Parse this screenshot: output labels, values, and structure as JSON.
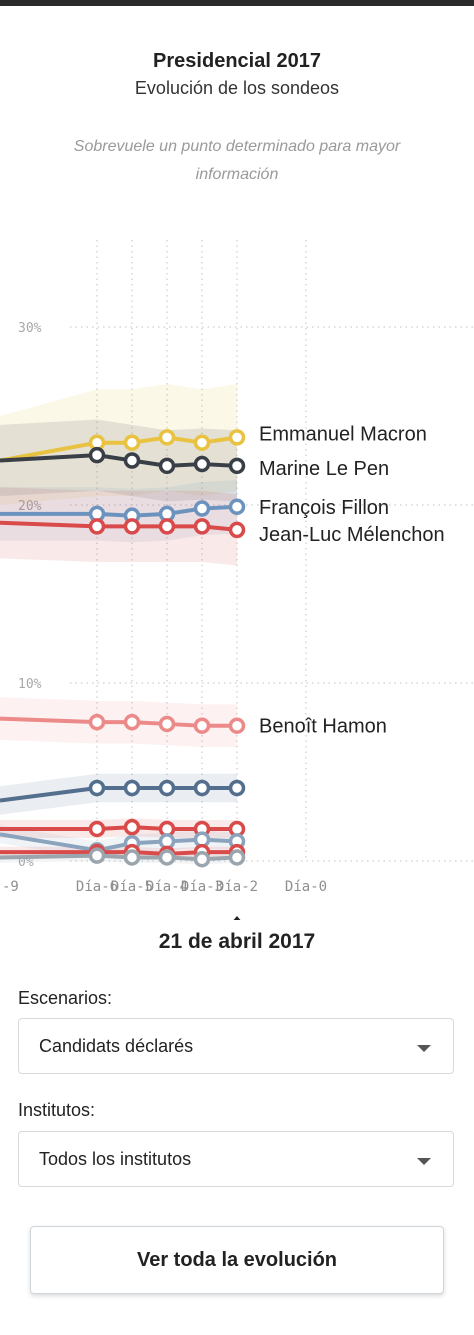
{
  "header": {
    "title": "Presidencial 2017",
    "subtitle": "Evolución de los sondeos",
    "hint": "Sobrevuele un punto determinado para mayor información"
  },
  "selected_date": "21 de abril 2017",
  "filters": {
    "escenarios_label": "Escenarios:",
    "escenarios_value": "Candidats déclarés",
    "institutos_label": "Institutos:",
    "institutos_value": "Todos los institutos"
  },
  "button_label": "Ver toda la evolución",
  "chart_data": {
    "type": "line",
    "title": "Presidencial 2017",
    "subtitle": "Evolución de los sondeos",
    "xlabel": "",
    "ylabel": "",
    "ylim": [
      0,
      30
    ],
    "xlim": [
      -9,
      0
    ],
    "y_ticks": [
      0,
      10,
      20,
      30
    ],
    "y_tick_labels": [
      "0%",
      "10%",
      "20%",
      "30%"
    ],
    "x_ticks": [
      -9,
      -6,
      -5,
      -4,
      -3,
      -2,
      0
    ],
    "x_tick_labels": [
      "-9",
      "Día-6",
      "Día-5",
      "Día-4",
      "Día-3",
      "Día-2",
      "Día-0"
    ],
    "grid": true,
    "legend": "inline-right",
    "series": [
      {
        "name": "Emmanuel Macron",
        "color": "#e8c240",
        "x": [
          -9,
          -6,
          -5,
          -4,
          -3,
          -2
        ],
        "values": [
          22.5,
          23.5,
          23.5,
          23.8,
          23.5,
          23.8
        ],
        "band": [
          2.5,
          3.0,
          3.0,
          3.0,
          3.0,
          3.0
        ]
      },
      {
        "name": "Marine Le Pen",
        "color": "#3a3f47",
        "x": [
          -9,
          -6,
          -5,
          -4,
          -3,
          -2
        ],
        "values": [
          22.5,
          22.8,
          22.5,
          22.2,
          22.3,
          22.2
        ],
        "band": [
          2.0,
          2.0,
          2.0,
          2.0,
          2.0,
          2.0
        ]
      },
      {
        "name": "François Fillon",
        "color": "#6c93bd",
        "x": [
          -9,
          -6,
          -5,
          -4,
          -3,
          -2
        ],
        "values": [
          19.5,
          19.5,
          19.4,
          19.5,
          19.8,
          19.9
        ],
        "band": [
          1.5,
          1.5,
          1.5,
          1.5,
          1.5,
          1.5
        ]
      },
      {
        "name": "Jean-Luc Mélenchon",
        "color": "#d94a4a",
        "x": [
          -9,
          -6,
          -5,
          -4,
          -3,
          -2
        ],
        "values": [
          19.0,
          18.8,
          18.8,
          18.8,
          18.8,
          18.6
        ],
        "band": [
          2.0,
          2.0,
          2.0,
          2.0,
          2.0,
          2.0
        ]
      },
      {
        "name": "Benoît Hamon",
        "color": "#ec8a8a",
        "x": [
          -9,
          -6,
          -5,
          -4,
          -3,
          -2
        ],
        "values": [
          8.0,
          7.8,
          7.8,
          7.7,
          7.6,
          7.6
        ],
        "band": [
          1.2,
          1.2,
          1.2,
          1.2,
          1.2,
          1.2
        ]
      },
      {
        "name": "",
        "color": "#546e8e",
        "x": [
          -9,
          -6,
          -5,
          -4,
          -3,
          -2
        ],
        "values": [
          3.4,
          4.1,
          4.1,
          4.1,
          4.1,
          4.1
        ],
        "band": [
          0.8,
          0.8,
          0.8,
          0.8,
          0.8,
          0.8
        ]
      },
      {
        "name": "",
        "color": "#d94a4a",
        "x": [
          -9,
          -6,
          -5,
          -4,
          -3,
          -2
        ],
        "values": [
          1.8,
          1.8,
          1.9,
          1.8,
          1.8,
          1.8
        ],
        "band": [
          0.5,
          0.5,
          0.5,
          0.5,
          0.5,
          0.5
        ]
      },
      {
        "name": "",
        "color": "#8ba3bc",
        "x": [
          -9,
          -6,
          -5,
          -4,
          -3,
          -2
        ],
        "values": [
          1.5,
          0.6,
          1.0,
          1.1,
          1.2,
          1.1
        ],
        "band": [
          0.5,
          0.5,
          0.5,
          0.5,
          0.5,
          0.5
        ]
      },
      {
        "name": "",
        "color": "#d94a4a",
        "x": [
          -9,
          -6,
          -5,
          -4,
          -3,
          -2
        ],
        "values": [
          0.5,
          0.5,
          0.5,
          0.4,
          0.5,
          0.5
        ],
        "band": [
          0.3,
          0.3,
          0.3,
          0.3,
          0.3,
          0.3
        ]
      },
      {
        "name": "",
        "color": "#9aa5ad",
        "x": [
          -9,
          -6,
          -5,
          -4,
          -3,
          -2
        ],
        "values": [
          0.2,
          0.3,
          0.2,
          0.2,
          0.1,
          0.2
        ],
        "band": [
          0.3,
          0.3,
          0.3,
          0.3,
          0.3,
          0.3
        ]
      }
    ]
  }
}
